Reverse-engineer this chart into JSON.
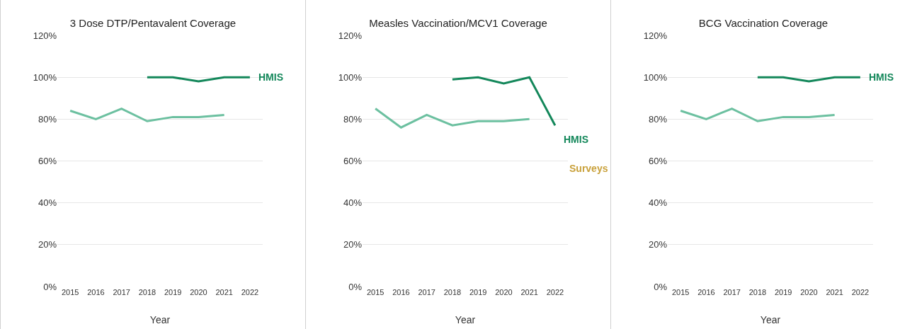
{
  "chart_data": [
    {
      "type": "line",
      "title": "3 Dose DTP/Pentavalent Coverage",
      "xlabel": "Year",
      "xlim": [
        2014.5,
        2022.5
      ],
      "xticks": [
        2015,
        2016,
        2017,
        2018,
        2019,
        2020,
        2021,
        2022
      ],
      "ylim": [
        0,
        120
      ],
      "yticks": [
        {
          "value": 0,
          "label": "0%"
        },
        {
          "value": 20,
          "label": "20%"
        },
        {
          "value": 40,
          "label": "40%"
        },
        {
          "value": 60,
          "label": "60%"
        },
        {
          "value": 80,
          "label": "80%"
        },
        {
          "value": 100,
          "label": "100%"
        },
        {
          "value": 120,
          "label": "120%"
        }
      ],
      "grid": "y",
      "marker": "none",
      "x": [
        2015,
        2016,
        2017,
        2018,
        2019,
        2020,
        2021,
        2022
      ],
      "series": [
        {
          "color": "#6cc0a0",
          "values": [
            84,
            80,
            85,
            79,
            81,
            81,
            82,
            null
          ]
        },
        {
          "name": "HMIS",
          "color": "#13875a",
          "values": [
            null,
            null,
            null,
            100,
            100,
            98,
            100,
            100
          ]
        }
      ]
    },
    {
      "type": "line",
      "title": "Measles Vaccination/MCV1 Coverage",
      "xlabel": "Year",
      "xlim": [
        2014.5,
        2022.5
      ],
      "xticks": [
        2015,
        2016,
        2017,
        2018,
        2019,
        2020,
        2021,
        2022
      ],
      "ylim": [
        0,
        120
      ],
      "yticks": [
        {
          "value": 0,
          "label": "0%"
        },
        {
          "value": 20,
          "label": "20%"
        },
        {
          "value": 40,
          "label": "40%"
        },
        {
          "value": 60,
          "label": "60%"
        },
        {
          "value": 80,
          "label": "80%"
        },
        {
          "value": 100,
          "label": "100%"
        },
        {
          "value": 120,
          "label": "120%"
        }
      ],
      "grid": "y",
      "marker": "none",
      "annotations": [
        "Surveys"
      ],
      "x": [
        2015,
        2016,
        2017,
        2018,
        2019,
        2020,
        2021,
        2022
      ],
      "series": [
        {
          "color": "#6cc0a0",
          "values": [
            85,
            76,
            82,
            77,
            79,
            79,
            80,
            null
          ]
        },
        {
          "name": "HMIS",
          "color": "#13875a",
          "values": [
            null,
            null,
            null,
            99,
            100,
            97,
            100,
            77
          ]
        }
      ]
    },
    {
      "type": "line",
      "title": "BCG Vaccination Coverage",
      "xlabel": "Year",
      "xlim": [
        2014.5,
        2022.5
      ],
      "xticks": [
        2015,
        2016,
        2017,
        2018,
        2019,
        2020,
        2021,
        2022
      ],
      "ylim": [
        0,
        120
      ],
      "yticks": [
        {
          "value": 0,
          "label": "0%"
        },
        {
          "value": 20,
          "label": "20%"
        },
        {
          "value": 40,
          "label": "40%"
        },
        {
          "value": 60,
          "label": "60%"
        },
        {
          "value": 80,
          "label": "80%"
        },
        {
          "value": 100,
          "label": "100%"
        },
        {
          "value": 120,
          "label": "120%"
        }
      ],
      "grid": "y",
      "marker": "none",
      "x": [
        2015,
        2016,
        2017,
        2018,
        2019,
        2020,
        2021,
        2022
      ],
      "series": [
        {
          "color": "#6cc0a0",
          "values": [
            84,
            80,
            85,
            79,
            81,
            81,
            82,
            null
          ]
        },
        {
          "name": "HMIS",
          "color": "#13875a",
          "values": [
            null,
            null,
            null,
            100,
            100,
            98,
            100,
            100
          ]
        }
      ]
    }
  ]
}
